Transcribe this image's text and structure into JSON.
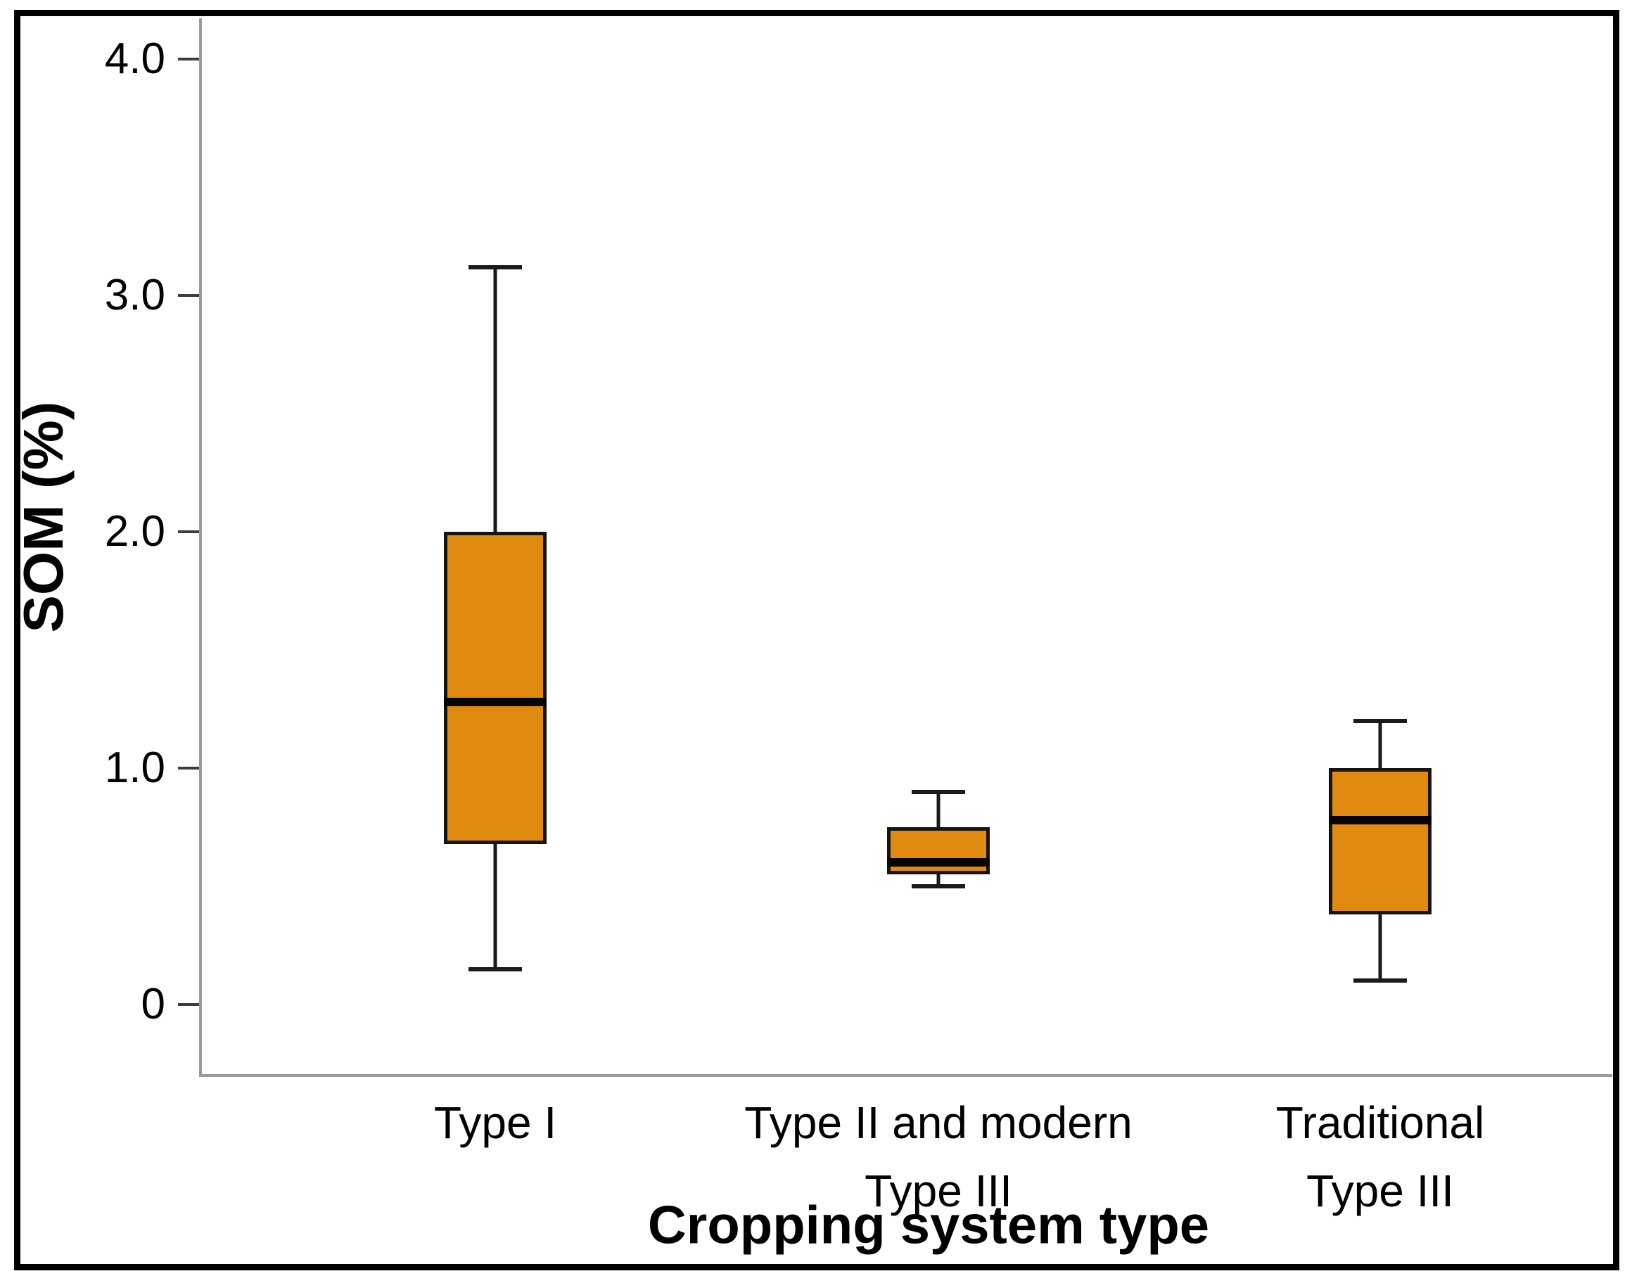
{
  "figure": {
    "y_axis": {
      "title": "SOM (%)",
      "tick_labels": [
        "0",
        "1.0",
        "2.0",
        "3.0",
        "4.0"
      ],
      "tick_values": [
        0,
        1,
        2,
        3,
        4
      ]
    },
    "x_axis": {
      "title": "Cropping system type",
      "category_label_lines": [
        [
          "Type I"
        ],
        [
          "Type II and modern",
          "Type III"
        ],
        [
          "Traditional Type III"
        ]
      ]
    }
  },
  "colors": {
    "box_fill": "#E18A10",
    "box_border": "#141414",
    "median": "#050505",
    "axis_line": "#9a9a9a",
    "tick_mark": "#3d3d3d",
    "frame": "#000000"
  },
  "chart_data": {
    "type": "boxplot",
    "title": "",
    "xlabel": "Cropping system type",
    "ylabel": "SOM (%)",
    "ylim": [
      0,
      4.3
    ],
    "grid": false,
    "legend": false,
    "categories": [
      "Type I",
      "Type II and modern Type III",
      "Traditional Type III"
    ],
    "series": [
      {
        "name": "Type I",
        "min": 0.15,
        "q1": 0.68,
        "median": 1.28,
        "q3": 2.0,
        "max": 3.12
      },
      {
        "name": "Type II and modern Type III",
        "min": 0.5,
        "q1": 0.55,
        "median": 0.6,
        "q3": 0.75,
        "max": 0.9
      },
      {
        "name": "Traditional Type III",
        "min": 0.1,
        "q1": 0.38,
        "median": 0.78,
        "q3": 1.0,
        "max": 1.2
      }
    ]
  }
}
